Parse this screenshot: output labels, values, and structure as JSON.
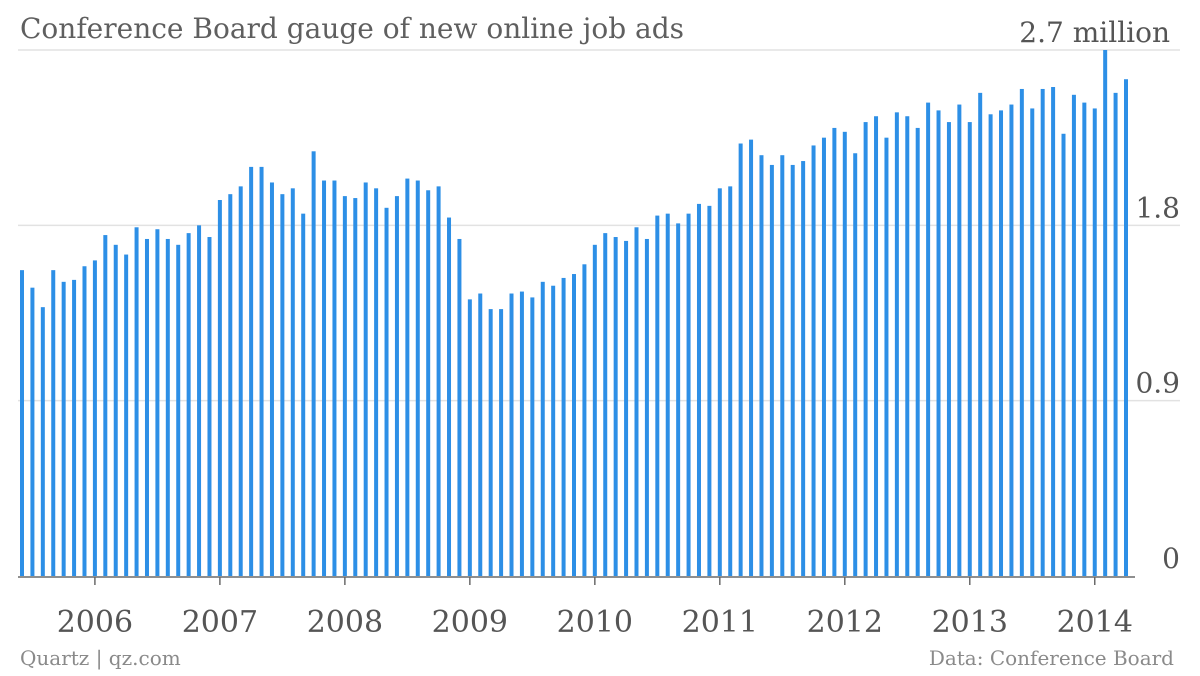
{
  "chart_data": {
    "type": "bar",
    "title": "Conference Board gauge of new online job ads",
    "unit_label": "2.7 million",
    "source_left": "Quartz | qz.com",
    "source_right": "Data: Conference Board",
    "colors": {
      "bar": "#2d8fe6",
      "grid": "#e2e2e2",
      "axis": "#6a6a6a"
    },
    "ylim": [
      0,
      2.7
    ],
    "yticks": [
      {
        "value": 2.7,
        "label": ""
      },
      {
        "value": 1.8,
        "label": "1.8"
      },
      {
        "value": 0.9,
        "label": "0.9"
      },
      {
        "value": 0,
        "label": "0"
      }
    ],
    "xticks": [
      {
        "index": 7,
        "label": "2006"
      },
      {
        "index": 19,
        "label": "2007"
      },
      {
        "index": 31,
        "label": "2008"
      },
      {
        "index": 43,
        "label": "2009"
      },
      {
        "index": 55,
        "label": "2010"
      },
      {
        "index": 67,
        "label": "2011"
      },
      {
        "index": 79,
        "label": "2012"
      },
      {
        "index": 91,
        "label": "2013"
      },
      {
        "index": 103,
        "label": "2014"
      }
    ],
    "grid": true,
    "legend": "none",
    "start": "2005-06",
    "values": [
      1.57,
      1.48,
      1.38,
      1.57,
      1.51,
      1.52,
      1.59,
      1.62,
      1.75,
      1.7,
      1.65,
      1.79,
      1.73,
      1.78,
      1.73,
      1.7,
      1.76,
      1.8,
      1.74,
      1.93,
      1.96,
      2.0,
      2.1,
      2.1,
      2.02,
      1.96,
      1.99,
      1.86,
      2.18,
      2.03,
      2.03,
      1.95,
      1.94,
      2.02,
      1.99,
      1.89,
      1.95,
      2.04,
      2.03,
      1.98,
      2.0,
      1.84,
      1.73,
      1.42,
      1.45,
      1.37,
      1.37,
      1.45,
      1.46,
      1.43,
      1.51,
      1.49,
      1.53,
      1.55,
      1.6,
      1.7,
      1.76,
      1.74,
      1.72,
      1.79,
      1.73,
      1.85,
      1.86,
      1.81,
      1.86,
      1.91,
      1.9,
      1.99,
      2.0,
      2.22,
      2.24,
      2.16,
      2.11,
      2.16,
      2.11,
      2.13,
      2.21,
      2.25,
      2.3,
      2.28,
      2.17,
      2.33,
      2.36,
      2.25,
      2.38,
      2.36,
      2.3,
      2.43,
      2.39,
      2.33,
      2.42,
      2.33,
      2.48,
      2.37,
      2.39,
      2.42,
      2.5,
      2.4,
      2.5,
      2.51,
      2.27,
      2.47,
      2.43,
      2.4,
      2.7,
      2.48,
      2.55
    ]
  }
}
